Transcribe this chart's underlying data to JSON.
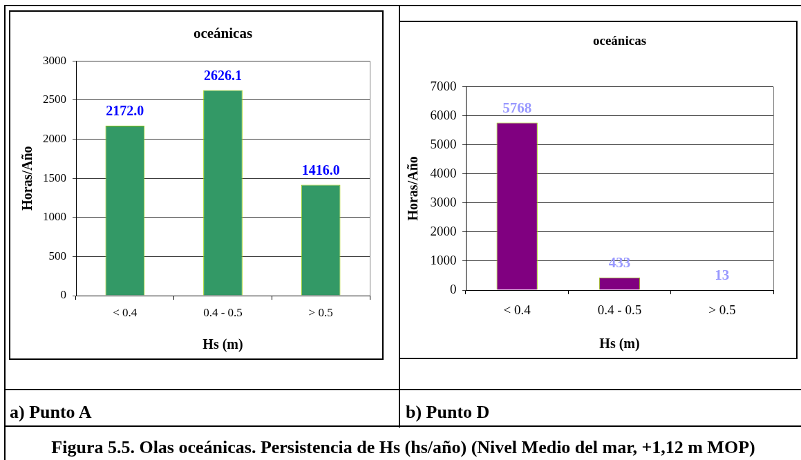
{
  "chart_data": [
    {
      "type": "bar",
      "title": "oceánicas",
      "xlabel": "Hs (m)",
      "ylabel": "Horas/Año",
      "categories": [
        "< 0.4",
        "0.4 - 0.5",
        "> 0.5"
      ],
      "values": [
        2172.0,
        2626.1,
        1416.0
      ],
      "value_labels": [
        "2172.0",
        "2626.1",
        "1416.0"
      ],
      "color": "#339966",
      "ylim": [
        0,
        3000
      ],
      "yticks": [
        0,
        500,
        1000,
        1500,
        2000,
        2500,
        3000
      ],
      "grid": "y",
      "annotations": [
        "a) Punto A"
      ]
    },
    {
      "type": "bar",
      "title": "oceánicas",
      "xlabel": "Hs (m)",
      "ylabel": "Horas/Año",
      "categories": [
        "< 0.4",
        "0.4 - 0.5",
        "> 0.5"
      ],
      "values": [
        5768,
        433,
        13
      ],
      "data_labels": true,
      "color": "#800080",
      "ylim": [
        0,
        7000
      ],
      "yticks": [
        0,
        1000,
        2000,
        3000,
        4000,
        5000,
        6000,
        7000
      ],
      "grid": "y",
      "annotations": [
        "b) Punto D",
        "Figura 5.5. Olas oceánicas. Persistencia de Hs (hs/año) (Nivel Medio del mar, +1,12 m MOP)"
      ]
    }
  ]
}
